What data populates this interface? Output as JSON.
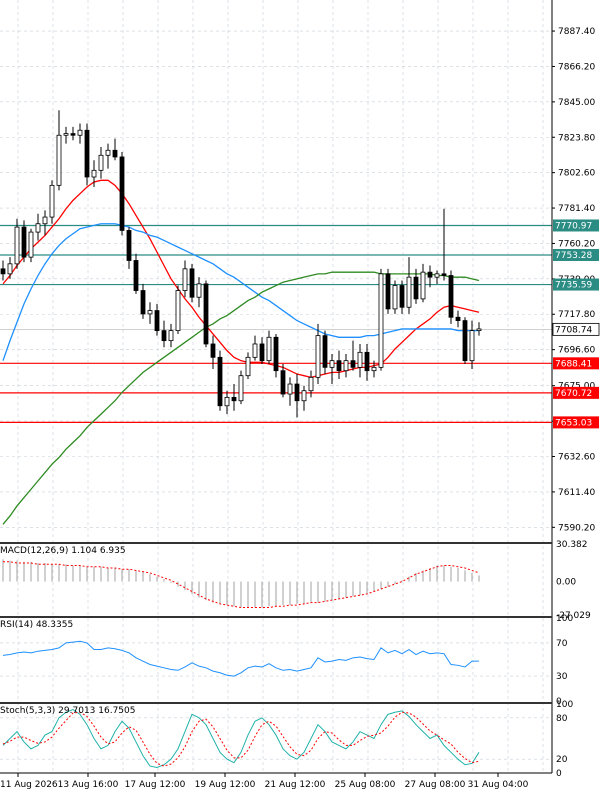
{
  "chart_data": {
    "type": "candlestick",
    "price_axis": {
      "ticks": [
        "7887.40",
        "7866.20",
        "7845.00",
        "7823.80",
        "7802.60",
        "7781.40",
        "7760.20",
        "7739.00",
        "7717.80",
        "7696.60",
        "7675.00",
        "7653.80",
        "7632.60",
        "7611.40",
        "7590.20"
      ],
      "ylim": [
        7582,
        7906
      ]
    },
    "time_axis": {
      "ticks": [
        "11 Aug 2026",
        "13 Aug 16:00",
        "17 Aug 12:00",
        "19 Aug 12:00",
        "21 Aug 12:00",
        "25 Aug 08:00",
        "27 Aug 08:00",
        "31 Aug 04:00"
      ]
    },
    "candles": [
      {
        "o": 7745,
        "h": 7750,
        "l": 7738,
        "c": 7742
      },
      {
        "o": 7742,
        "h": 7752,
        "l": 7739,
        "c": 7748
      },
      {
        "o": 7748,
        "h": 7775,
        "l": 7745,
        "c": 7770
      },
      {
        "o": 7770,
        "h": 7774,
        "l": 7749,
        "c": 7752
      },
      {
        "o": 7752,
        "h": 7769,
        "l": 7749,
        "c": 7767
      },
      {
        "o": 7767,
        "h": 7778,
        "l": 7762,
        "c": 7772
      },
      {
        "o": 7772,
        "h": 7780,
        "l": 7765,
        "c": 7776
      },
      {
        "o": 7776,
        "h": 7798,
        "l": 7772,
        "c": 7795
      },
      {
        "o": 7795,
        "h": 7840,
        "l": 7792,
        "c": 7825
      },
      {
        "o": 7825,
        "h": 7830,
        "l": 7820,
        "c": 7826
      },
      {
        "o": 7826,
        "h": 7830,
        "l": 7822,
        "c": 7825
      },
      {
        "o": 7825,
        "h": 7832,
        "l": 7820,
        "c": 7828
      },
      {
        "o": 7828,
        "h": 7832,
        "l": 7795,
        "c": 7800
      },
      {
        "o": 7800,
        "h": 7810,
        "l": 7794,
        "c": 7804
      },
      {
        "o": 7804,
        "h": 7818,
        "l": 7799,
        "c": 7813
      },
      {
        "o": 7813,
        "h": 7820,
        "l": 7805,
        "c": 7816
      },
      {
        "o": 7816,
        "h": 7823,
        "l": 7810,
        "c": 7812
      },
      {
        "o": 7812,
        "h": 7815,
        "l": 7765,
        "c": 7768
      },
      {
        "o": 7768,
        "h": 7770,
        "l": 7745,
        "c": 7750
      },
      {
        "o": 7750,
        "h": 7754,
        "l": 7730,
        "c": 7732
      },
      {
        "o": 7732,
        "h": 7736,
        "l": 7715,
        "c": 7718
      },
      {
        "o": 7718,
        "h": 7725,
        "l": 7712,
        "c": 7720
      },
      {
        "o": 7720,
        "h": 7724,
        "l": 7705,
        "c": 7708
      },
      {
        "o": 7708,
        "h": 7714,
        "l": 7698,
        "c": 7702
      },
      {
        "o": 7702,
        "h": 7712,
        "l": 7698,
        "c": 7708
      },
      {
        "o": 7708,
        "h": 7735,
        "l": 7706,
        "c": 7732
      },
      {
        "o": 7732,
        "h": 7750,
        "l": 7728,
        "c": 7745
      },
      {
        "o": 7745,
        "h": 7748,
        "l": 7725,
        "c": 7728
      },
      {
        "o": 7728,
        "h": 7740,
        "l": 7722,
        "c": 7736
      },
      {
        "o": 7736,
        "h": 7738,
        "l": 7698,
        "c": 7700
      },
      {
        "o": 7700,
        "h": 7705,
        "l": 7685,
        "c": 7692
      },
      {
        "o": 7692,
        "h": 7696,
        "l": 7660,
        "c": 7663
      },
      {
        "o": 7663,
        "h": 7672,
        "l": 7658,
        "c": 7668
      },
      {
        "o": 7668,
        "h": 7676,
        "l": 7660,
        "c": 7666
      },
      {
        "o": 7666,
        "h": 7684,
        "l": 7664,
        "c": 7681
      },
      {
        "o": 7681,
        "h": 7695,
        "l": 7679,
        "c": 7692
      },
      {
        "o": 7692,
        "h": 7705,
        "l": 7690,
        "c": 7700
      },
      {
        "o": 7700,
        "h": 7704,
        "l": 7688,
        "c": 7690
      },
      {
        "o": 7690,
        "h": 7708,
        "l": 7688,
        "c": 7704
      },
      {
        "o": 7704,
        "h": 7706,
        "l": 7680,
        "c": 7684
      },
      {
        "o": 7684,
        "h": 7688,
        "l": 7668,
        "c": 7670
      },
      {
        "o": 7670,
        "h": 7680,
        "l": 7663,
        "c": 7676
      },
      {
        "o": 7676,
        "h": 7682,
        "l": 7656,
        "c": 7666
      },
      {
        "o": 7666,
        "h": 7675,
        "l": 7660,
        "c": 7672
      },
      {
        "o": 7672,
        "h": 7684,
        "l": 7668,
        "c": 7680
      },
      {
        "o": 7680,
        "h": 7712,
        "l": 7676,
        "c": 7705
      },
      {
        "o": 7705,
        "h": 7708,
        "l": 7682,
        "c": 7686
      },
      {
        "o": 7686,
        "h": 7694,
        "l": 7676,
        "c": 7690
      },
      {
        "o": 7690,
        "h": 7696,
        "l": 7679,
        "c": 7684
      },
      {
        "o": 7684,
        "h": 7694,
        "l": 7680,
        "c": 7690
      },
      {
        "o": 7690,
        "h": 7702,
        "l": 7684,
        "c": 7686
      },
      {
        "o": 7686,
        "h": 7700,
        "l": 7680,
        "c": 7695
      },
      {
        "o": 7695,
        "h": 7700,
        "l": 7678,
        "c": 7684
      },
      {
        "o": 7684,
        "h": 7690,
        "l": 7680,
        "c": 7686
      },
      {
        "o": 7686,
        "h": 7745,
        "l": 7684,
        "c": 7742
      },
      {
        "o": 7742,
        "h": 7745,
        "l": 7718,
        "c": 7721
      },
      {
        "o": 7721,
        "h": 7738,
        "l": 7718,
        "c": 7735
      },
      {
        "o": 7735,
        "h": 7738,
        "l": 7718,
        "c": 7722
      },
      {
        "o": 7722,
        "h": 7752,
        "l": 7718,
        "c": 7740
      },
      {
        "o": 7740,
        "h": 7745,
        "l": 7724,
        "c": 7727
      },
      {
        "o": 7727,
        "h": 7748,
        "l": 7725,
        "c": 7743
      },
      {
        "o": 7743,
        "h": 7747,
        "l": 7734,
        "c": 7740
      },
      {
        "o": 7740,
        "h": 7744,
        "l": 7736,
        "c": 7742
      },
      {
        "o": 7742,
        "h": 7781,
        "l": 7738,
        "c": 7741
      },
      {
        "o": 7741,
        "h": 7744,
        "l": 7712,
        "c": 7716
      },
      {
        "o": 7716,
        "h": 7720,
        "l": 7710,
        "c": 7714
      },
      {
        "o": 7714,
        "h": 7716,
        "l": 7688,
        "c": 7690
      },
      {
        "o": 7690,
        "h": 7714,
        "l": 7685,
        "c": 7708
      },
      {
        "o": 7708,
        "h": 7713,
        "l": 7705,
        "c": 7709
      }
    ],
    "moving_averages": [
      {
        "color": "#ff0000",
        "values": [
          7736,
          7741,
          7747,
          7752,
          7757,
          7761,
          7765,
          7770,
          7775,
          7781,
          7786,
          7790,
          7794,
          7797,
          7798,
          7798,
          7795,
          7790,
          7784,
          7777,
          7770,
          7763,
          7755,
          7747,
          7739,
          7733,
          7727,
          7722,
          7716,
          7711,
          7706,
          7701,
          7696,
          7692,
          7690,
          7689,
          7689,
          7689,
          7688,
          7687,
          7686,
          7684,
          7682,
          7681,
          7680,
          7681,
          7682,
          7683,
          7683,
          7684,
          7685,
          7686,
          7686,
          7687,
          7688,
          7692,
          7697,
          7701,
          7705,
          7709,
          7712,
          7715,
          7719,
          7722,
          7723,
          7722,
          7721,
          7720,
          7719
        ]
      },
      {
        "color": "#1e90ff",
        "values": [
          7690,
          7702,
          7713,
          7724,
          7733,
          7741,
          7748,
          7754,
          7759,
          7763,
          7766,
          7769,
          7770,
          7771,
          7772,
          7772,
          7772,
          7771,
          7770,
          7768,
          7767,
          7765,
          7764,
          7762,
          7760,
          7758,
          7756,
          7754,
          7752,
          7750,
          7748,
          7745,
          7742,
          7740,
          7737,
          7734,
          7731,
          7728,
          7726,
          7723,
          7720,
          7717,
          7714,
          7712,
          7710,
          7708,
          7706,
          7705,
          7704,
          7704,
          7704,
          7704,
          7705,
          7705,
          7706,
          7707,
          7708,
          7709,
          7709,
          7709,
          7709,
          7709,
          7709,
          7709,
          7709,
          7708,
          7708,
          7708,
          7708
        ]
      },
      {
        "color": "#2e8b22",
        "values": [
          7592,
          7597,
          7603,
          7608,
          7613,
          7618,
          7623,
          7628,
          7632,
          7637,
          7641,
          7645,
          7650,
          7654,
          7658,
          7662,
          7666,
          7671,
          7675,
          7679,
          7683,
          7686,
          7689,
          7692,
          7695,
          7698,
          7701,
          7704,
          7707,
          7710,
          7712,
          7715,
          7717,
          7720,
          7723,
          7726,
          7728,
          7731,
          7733,
          7735,
          7737,
          7738,
          7739,
          7740,
          7741,
          7742,
          7742,
          7743,
          7743,
          7743,
          7743,
          7743,
          7743,
          7743,
          7742,
          7742,
          7742,
          7742,
          7742,
          7742,
          7742,
          7742,
          7741,
          7741,
          7740,
          7740,
          7740,
          7739,
          7738
        ]
      }
    ],
    "horizontal_levels": [
      {
        "value": 7770.97,
        "label": "7770.97",
        "color": "#2a8c83"
      },
      {
        "value": 7753.28,
        "label": "7753.28",
        "color": "#2a8c83"
      },
      {
        "value": 7735.59,
        "label": "7735.59",
        "color": "#2a8c83"
      },
      {
        "value": 7688.41,
        "label": "7688.41",
        "color": "#ff0000"
      },
      {
        "value": 7670.72,
        "label": "7670.72",
        "color": "#ff0000"
      },
      {
        "value": 7653.03,
        "label": "7653.03",
        "color": "#ff0000"
      }
    ],
    "current_price": {
      "value": 7708.74,
      "label": "7708.74"
    },
    "macd": {
      "label": "MACD(12,26,9) 1.104 6.935",
      "ticks": [
        "30.382",
        "0.00",
        "-27.029"
      ],
      "ylim": [
        -27.029,
        30.382
      ],
      "histogram": [
        18,
        17,
        17,
        16,
        16,
        15,
        15,
        14,
        14,
        14,
        13,
        13,
        12,
        12,
        12,
        11,
        11,
        10,
        10,
        9,
        8,
        6,
        4,
        2,
        -1,
        -4,
        -7,
        -10,
        -13,
        -15,
        -17,
        -18,
        -19,
        -20,
        -21,
        -21,
        -21,
        -21,
        -20,
        -20,
        -19,
        -19,
        -18,
        -18,
        -17,
        -17,
        -16,
        -15,
        -14,
        -13,
        -12,
        -11,
        -10,
        -8,
        -6,
        -4,
        -2,
        1,
        4,
        7,
        9,
        11,
        13,
        13,
        12,
        11,
        9,
        7,
        5
      ],
      "signal": [
        16,
        16,
        15,
        15,
        15,
        14,
        14,
        14,
        14,
        13,
        13,
        13,
        12,
        12,
        12,
        11,
        11,
        10,
        10,
        9,
        8,
        7,
        5,
        3,
        1,
        -2,
        -5,
        -8,
        -11,
        -14,
        -16,
        -18,
        -19,
        -20,
        -21,
        -21,
        -21,
        -21,
        -21,
        -20,
        -20,
        -19,
        -19,
        -18,
        -17,
        -17,
        -16,
        -15,
        -14,
        -13,
        -12,
        -11,
        -10,
        -8,
        -6,
        -4,
        -2,
        0,
        3,
        6,
        8,
        10,
        12,
        13,
        13,
        12,
        11,
        9,
        7
      ]
    },
    "rsi": {
      "label": "RSI(14) 48.3355",
      "ticks": [
        "100",
        "70",
        "30",
        "0"
      ],
      "ylim": [
        0,
        100
      ],
      "values": [
        55,
        56,
        58,
        59,
        58,
        60,
        61,
        62,
        64,
        70,
        71,
        72,
        70,
        62,
        62,
        64,
        63,
        61,
        58,
        52,
        48,
        44,
        42,
        40,
        38,
        37,
        41,
        46,
        42,
        40,
        36,
        34,
        31,
        30,
        34,
        40,
        42,
        41,
        45,
        40,
        37,
        38,
        36,
        38,
        40,
        52,
        47,
        48,
        50,
        49,
        52,
        53,
        51,
        50,
        64,
        58,
        61,
        57,
        62,
        56,
        60,
        57,
        58,
        57,
        44,
        43,
        41,
        48,
        48
      ]
    },
    "stoch": {
      "label": "Stoch(5,3,3) 29.7013 16.7505",
      "ticks": [
        "100",
        "80",
        "20",
        "0"
      ],
      "ylim": [
        0,
        100
      ],
      "main": [
        40,
        50,
        60,
        45,
        35,
        40,
        55,
        60,
        80,
        88,
        92,
        85,
        70,
        50,
        35,
        40,
        60,
        75,
        65,
        45,
        25,
        10,
        8,
        12,
        20,
        35,
        60,
        85,
        80,
        70,
        50,
        30,
        20,
        15,
        30,
        55,
        75,
        80,
        70,
        55,
        35,
        25,
        20,
        30,
        50,
        70,
        60,
        45,
        40,
        35,
        45,
        60,
        55,
        50,
        70,
        85,
        88,
        90,
        82,
        70,
        60,
        50,
        55,
        40,
        30,
        20,
        12,
        14,
        30
      ],
      "signal": [
        42,
        46,
        52,
        52,
        47,
        43,
        45,
        52,
        65,
        76,
        87,
        88,
        82,
        68,
        52,
        42,
        45,
        58,
        67,
        62,
        45,
        27,
        14,
        10,
        13,
        22,
        38,
        60,
        75,
        78,
        67,
        50,
        33,
        22,
        22,
        33,
        53,
        70,
        75,
        68,
        53,
        38,
        27,
        25,
        33,
        50,
        60,
        58,
        48,
        40,
        40,
        47,
        53,
        55,
        58,
        68,
        81,
        88,
        87,
        81,
        71,
        61,
        55,
        48,
        42,
        30,
        21,
        15,
        17
      ]
    }
  }
}
